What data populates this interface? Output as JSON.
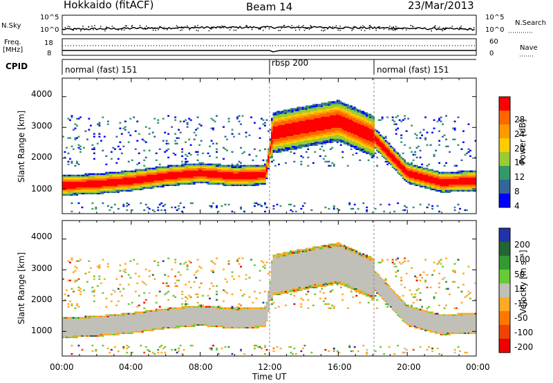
{
  "header": {
    "station": "Hokkaido (fitACF)",
    "beam": "Beam 14",
    "date": "23/Mar/2013"
  },
  "top_panels": {
    "nsky_label": "N.Sky",
    "nsearch_label": "N.Search",
    "nsky_ticks": [
      "10^5",
      "10^0"
    ],
    "nsearch_ticks": [
      "10^5",
      "10^0"
    ],
    "freq_label_1": "Freq.",
    "freq_label_2": "[MHz]",
    "freq_ticks": [
      "18",
      "8"
    ],
    "nave_label": "Nave",
    "nave_ticks": [
      "60",
      "0"
    ],
    "cpid_label": "CPID",
    "modes": [
      {
        "label": "normal (fast) 151",
        "start_h": 0
      },
      {
        "label": "rbsp 200",
        "start_h": 12
      },
      {
        "label": "normal (fast) 151",
        "start_h": 18
      }
    ]
  },
  "colorbars": {
    "power": {
      "label": "Power [dB]",
      "ticks": [
        "28",
        "24",
        "20",
        "16",
        "12",
        "8",
        "4"
      ],
      "colors": [
        "#ff0000",
        "#ff6600",
        "#ff9900",
        "#ffcc00",
        "#99cc33",
        "#339966",
        "#336699",
        "#0000ff"
      ]
    },
    "velocity": {
      "label": "Velocity [m s⁻¹]",
      "ticks": [
        "200",
        "100",
        "50",
        "15",
        "-15",
        "-50",
        "-100",
        "-200"
      ],
      "colors": [
        "#2233aa",
        "#226633",
        "#339933",
        "#66cc33",
        "#c0c0b8",
        "#ffaa22",
        "#ff7700",
        "#ee4400",
        "#ee0000"
      ]
    }
  },
  "axes": {
    "ylabel": "Slant Range [km]",
    "yticks": [
      "4000",
      "3000",
      "2000",
      "1000"
    ],
    "xlabel": "Time UT",
    "xticks": [
      "00:00",
      "04:00",
      "08:00",
      "12:00",
      "16:00",
      "20:00",
      "00:00"
    ]
  },
  "chart_data": [
    {
      "type": "heatmap",
      "title": "",
      "xlabel": "",
      "ylabel": "Slant Range [km]",
      "xlim": [
        0,
        24
      ],
      "ylim": [
        200,
        4600
      ],
      "colorbar_label": "Power [dB]",
      "echo_band_center_km": [
        {
          "x": 0,
          "y": 1100
        },
        {
          "x": 2,
          "y": 1150
        },
        {
          "x": 4,
          "y": 1250
        },
        {
          "x": 6,
          "y": 1400
        },
        {
          "x": 8,
          "y": 1500
        },
        {
          "x": 10,
          "y": 1400
        },
        {
          "x": 11.8,
          "y": 1450
        },
        {
          "x": 12.2,
          "y": 2800
        },
        {
          "x": 14,
          "y": 3000
        },
        {
          "x": 16,
          "y": 3200
        },
        {
          "x": 18,
          "y": 2700
        },
        {
          "x": 20,
          "y": 1500
        },
        {
          "x": 22,
          "y": 1200
        },
        {
          "x": 24,
          "y": 1250
        }
      ]
    },
    {
      "type": "heatmap",
      "title": "",
      "xlabel": "Time UT",
      "ylabel": "Slant Range [km]",
      "xlim": [
        0,
        24
      ],
      "ylim": [
        200,
        4600
      ],
      "colorbar_label": "Velocity [m s⁻¹]",
      "echo_band_center_km": [
        {
          "x": 0,
          "y": 1100
        },
        {
          "x": 4,
          "y": 1300
        },
        {
          "x": 8,
          "y": 1500
        },
        {
          "x": 12.2,
          "y": 2800
        },
        {
          "x": 16,
          "y": 3100
        },
        {
          "x": 20,
          "y": 1400
        },
        {
          "x": 24,
          "y": 1200
        }
      ]
    }
  ]
}
